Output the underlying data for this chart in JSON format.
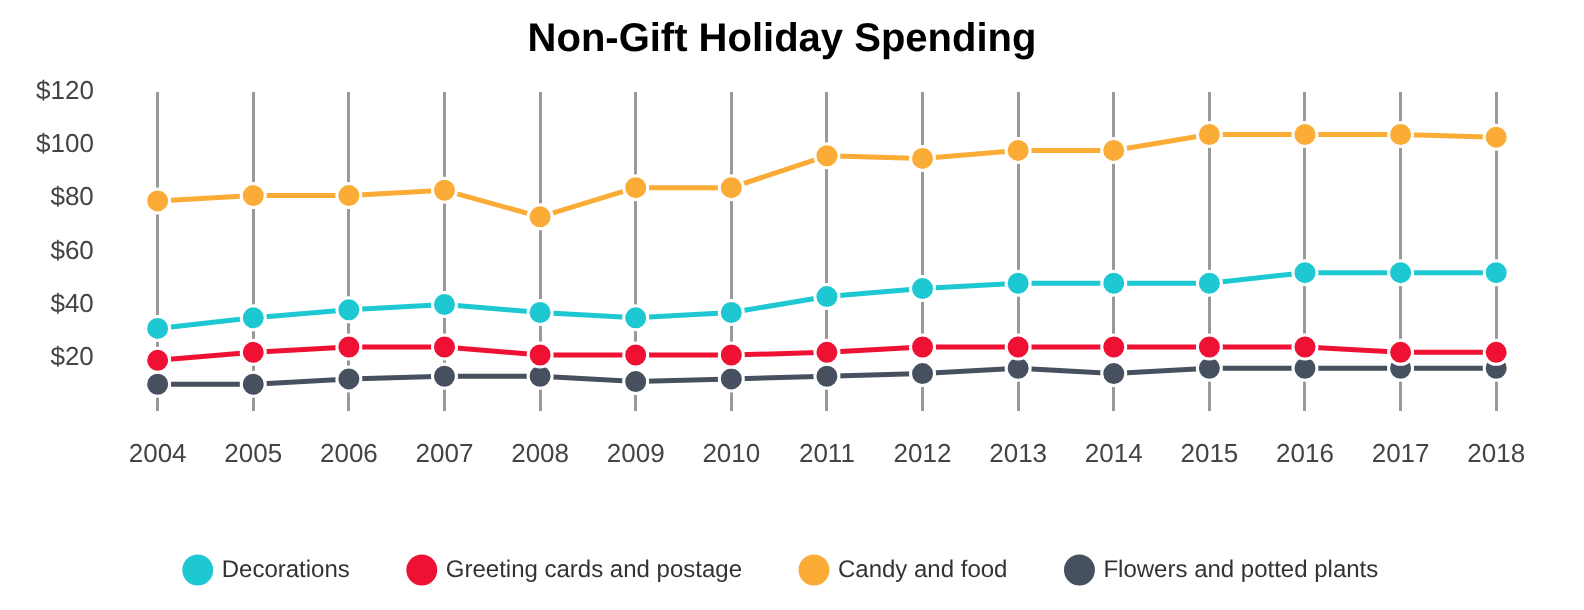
{
  "chart_data": {
    "type": "line",
    "title": "Non-Gift Holiday Spending",
    "categories": [
      "2004",
      "2005",
      "2006",
      "2007",
      "2008",
      "2009",
      "2010",
      "2011",
      "2012",
      "2013",
      "2014",
      "2015",
      "2016",
      "2017",
      "2018"
    ],
    "series": [
      {
        "name": "Decorations",
        "color": "#1ec8d2",
        "values": [
          31,
          35,
          38,
          40,
          37,
          35,
          37,
          43,
          46,
          48,
          48,
          48,
          52,
          52,
          52
        ]
      },
      {
        "name": "Greeting cards and postage",
        "color": "#ee1133",
        "values": [
          19,
          22,
          24,
          24,
          21,
          21,
          21,
          22,
          24,
          24,
          24,
          24,
          24,
          22,
          22
        ]
      },
      {
        "name": "Candy and food",
        "color": "#fbac37",
        "values": [
          79,
          81,
          81,
          83,
          73,
          84,
          84,
          96,
          95,
          98,
          98,
          104,
          104,
          104,
          103
        ]
      },
      {
        "name": "Flowers and potted plants",
        "color": "#46505e",
        "values": [
          10,
          10,
          12,
          13,
          13,
          11,
          12,
          13,
          14,
          16,
          14,
          16,
          16,
          16,
          16
        ]
      }
    ],
    "ylim": [
      0,
      120
    ],
    "yticks": [
      {
        "value": 20,
        "label": "$20"
      },
      {
        "value": 40,
        "label": "$40"
      },
      {
        "value": 60,
        "label": "$60"
      },
      {
        "value": 80,
        "label": "$80"
      },
      {
        "value": 100,
        "label": "$100"
      },
      {
        "value": 120,
        "label": "$120"
      }
    ],
    "grid": "x",
    "legend": "bottom",
    "marker": "circle",
    "line_style": "solid"
  }
}
